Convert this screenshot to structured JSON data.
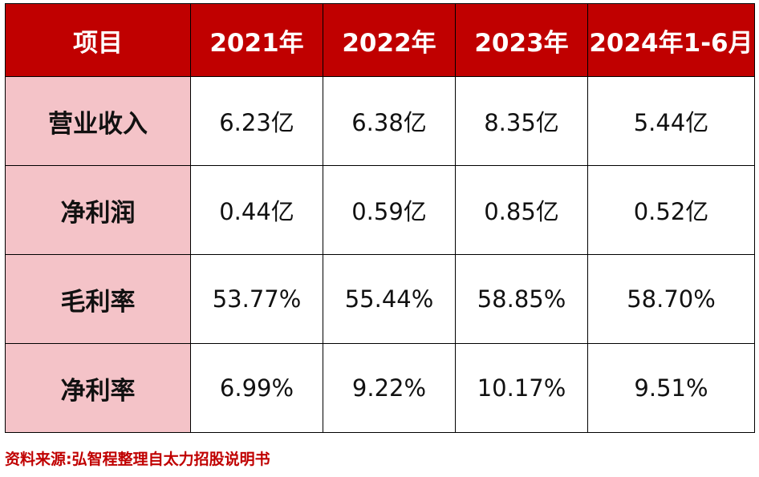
{
  "table": {
    "header": {
      "label": "项目",
      "years": [
        "2021年",
        "2022年",
        "2023年",
        "2024年1-6月"
      ]
    },
    "rows": [
      {
        "label": "营业收入",
        "values": [
          "6.23亿",
          "6.38亿",
          "8.35亿",
          "5.44亿"
        ]
      },
      {
        "label": "净利润",
        "values": [
          "0.44亿",
          "0.59亿",
          "0.85亿",
          "0.52亿"
        ]
      },
      {
        "label": "毛利率",
        "values": [
          "53.77%",
          "55.44%",
          "58.85%",
          "58.70%"
        ]
      },
      {
        "label": "净利率",
        "values": [
          "6.99%",
          "9.22%",
          "10.17%",
          "9.51%"
        ]
      }
    ]
  },
  "source_note": "资料来源:弘智程整理自太力招股说明书",
  "colors": {
    "header_bg": "#c00000",
    "label_bg": "#f4c3c8",
    "source_text": "#c00000"
  }
}
